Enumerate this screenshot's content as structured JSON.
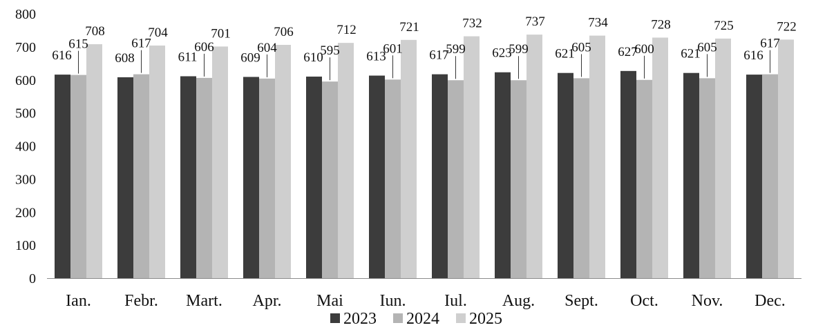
{
  "chart_data": {
    "type": "bar",
    "categories": [
      "Ian.",
      "Febr.",
      "Mart.",
      "Apr.",
      "Mai",
      "Iun.",
      "Iul.",
      "Aug.",
      "Sept.",
      "Oct.",
      "Nov.",
      "Dec."
    ],
    "series": [
      {
        "name": "2023",
        "color": "#3c3c3c",
        "values": [
          616,
          608,
          611,
          609,
          610,
          613,
          617,
          623,
          621,
          627,
          621,
          616
        ]
      },
      {
        "name": "2024",
        "color": "#b4b4b4",
        "values": [
          615,
          617,
          606,
          604,
          595,
          601,
          599,
          599,
          605,
          600,
          605,
          617
        ]
      },
      {
        "name": "2025",
        "color": "#cfcfcf",
        "values": [
          708,
          704,
          701,
          706,
          712,
          721,
          732,
          737,
          734,
          728,
          725,
          722
        ]
      }
    ],
    "ylim": [
      0,
      800
    ],
    "yticks": [
      0,
      100,
      200,
      300,
      400,
      500,
      600,
      700,
      800
    ],
    "grid": false,
    "legend_position": "bottom"
  }
}
